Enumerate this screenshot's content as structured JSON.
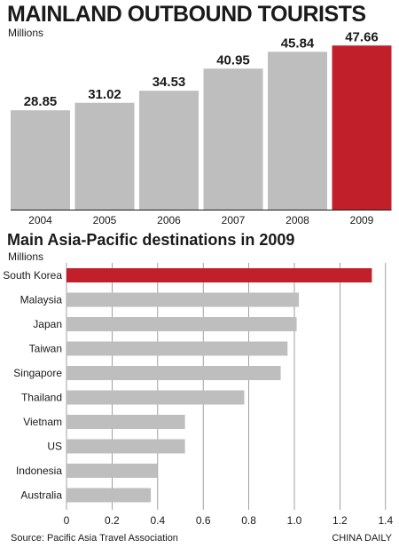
{
  "colors": {
    "bar": "#bebebe",
    "highlight": "#c1202a",
    "grid": "#888888",
    "text": "#1a1a1a"
  },
  "footer": {
    "source": "Source: Pacific Asia Travel Association",
    "credit": "CHINA DAILY"
  },
  "chart_data": [
    {
      "type": "bar",
      "title": "MAINLAND OUTBOUND TOURISTS",
      "ylabel": "Millions",
      "categories": [
        "2004",
        "2005",
        "2006",
        "2007",
        "2008",
        "2009"
      ],
      "values": [
        28.85,
        31.02,
        34.53,
        40.95,
        45.84,
        47.66
      ],
      "value_labels": [
        "28.85",
        "31.02",
        "34.53",
        "40.95",
        "45.84",
        "47.66"
      ],
      "highlight": "2009",
      "ylim": [
        0,
        48.5
      ],
      "grid": false
    },
    {
      "type": "bar",
      "orientation": "horizontal",
      "title": "Main Asia-Pacific destinations in 2009",
      "xlabel": "Millions",
      "categories": [
        "South Korea",
        "Malaysia",
        "Japan",
        "Taiwan",
        "Singapore",
        "Thailand",
        "Vietnam",
        "US",
        "Indonesia",
        "Australia"
      ],
      "values": [
        1.34,
        1.02,
        1.01,
        0.97,
        0.94,
        0.78,
        0.52,
        0.52,
        0.4,
        0.37
      ],
      "highlight": "South Korea",
      "xlim": [
        0,
        1.4
      ],
      "ticks": [
        "0",
        "0.2",
        "0.4",
        "0.6",
        "0.8",
        "1.0",
        "1.2",
        "1.4"
      ],
      "grid": true
    }
  ]
}
